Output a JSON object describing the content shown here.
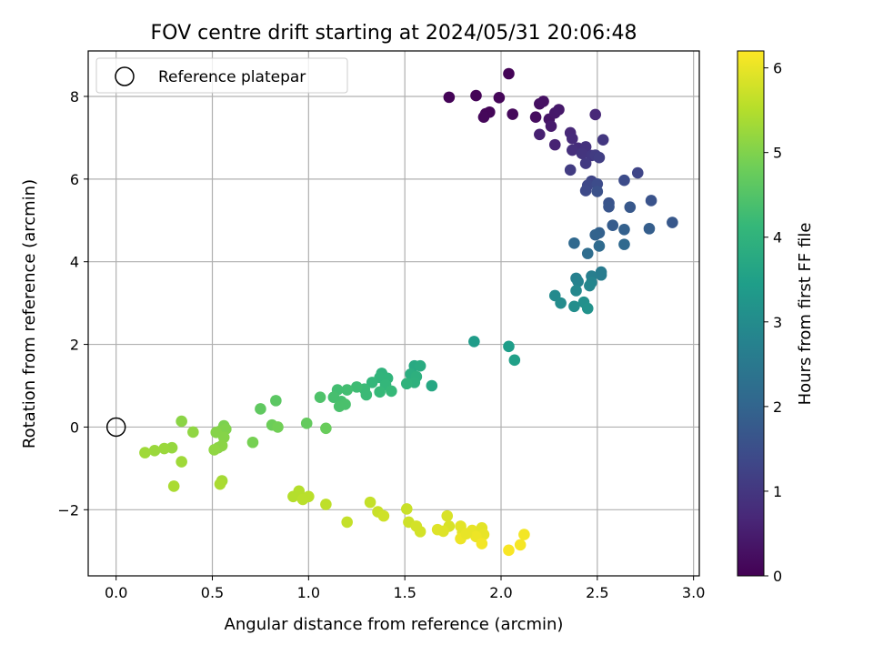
{
  "chart_data": {
    "type": "scatter",
    "title": "FOV centre drift starting at 2024/05/31 20:06:48",
    "xlabel": "Angular distance from reference (arcmin)",
    "ylabel": "Rotation from reference (arcmin)",
    "xlim": [
      -0.145,
      3.03
    ],
    "ylim": [
      -3.6,
      9.1
    ],
    "xticks": [
      0.0,
      0.5,
      1.0,
      1.5,
      2.0,
      2.5,
      3.0
    ],
    "xtick_labels": [
      "0.0",
      "0.5",
      "1.0",
      "1.5",
      "2.0",
      "2.5",
      "3.0"
    ],
    "yticks": [
      -2,
      0,
      2,
      4,
      6,
      8
    ],
    "ytick_labels": [
      "−2",
      "0",
      "2",
      "4",
      "6",
      "8"
    ],
    "grid": true,
    "legend": {
      "position": "top-left",
      "entries": [
        {
          "label": "Reference platepar",
          "marker": "open-circle"
        }
      ]
    },
    "reference_point": {
      "x": 0.0,
      "y": 0.0
    },
    "colorbar": {
      "label": "Hours from first FF file",
      "colormap": "viridis",
      "range": [
        0,
        6.2
      ],
      "ticks": [
        0,
        1,
        2,
        3,
        4,
        5,
        6
      ],
      "tick_labels": [
        "0",
        "1",
        "2",
        "3",
        "4",
        "5",
        "6"
      ]
    },
    "colormap_stops": [
      "#440154",
      "#482878",
      "#3e4989",
      "#31688e",
      "#26828e",
      "#1f9e89",
      "#35b779",
      "#6ece58",
      "#b5de2b",
      "#fde725"
    ],
    "series": [
      {
        "values": [
          [
            1.73,
            7.98,
            0.05
          ],
          [
            1.87,
            8.02,
            0.06
          ],
          [
            2.04,
            8.55,
            0.05
          ],
          [
            1.94,
            7.62,
            0.08
          ],
          [
            1.92,
            7.58,
            0.1
          ],
          [
            1.91,
            7.5,
            0.12
          ],
          [
            1.99,
            7.97,
            0.1
          ],
          [
            2.06,
            7.57,
            0.14
          ],
          [
            2.18,
            7.5,
            0.2
          ],
          [
            2.2,
            7.82,
            0.25
          ],
          [
            2.22,
            7.88,
            0.28
          ],
          [
            2.25,
            7.45,
            0.35
          ],
          [
            2.28,
            7.6,
            0.4
          ],
          [
            2.3,
            7.68,
            0.42
          ],
          [
            2.26,
            7.28,
            0.45
          ],
          [
            2.2,
            7.08,
            0.55
          ],
          [
            2.28,
            6.83,
            0.6
          ],
          [
            2.36,
            7.12,
            0.7
          ],
          [
            2.37,
            6.98,
            0.75
          ],
          [
            2.4,
            6.75,
            0.8
          ],
          [
            2.37,
            6.7,
            0.85
          ],
          [
            2.44,
            6.78,
            0.9
          ],
          [
            2.49,
            7.56,
            0.7
          ],
          [
            2.42,
            6.62,
            0.95
          ],
          [
            2.47,
            6.57,
            1.0
          ],
          [
            2.44,
            6.38,
            1.05
          ],
          [
            2.36,
            6.22,
            1.1
          ],
          [
            2.53,
            6.95,
            1.0
          ],
          [
            2.49,
            6.58,
            1.1
          ],
          [
            2.51,
            6.52,
            1.15
          ],
          [
            2.47,
            5.95,
            1.3
          ],
          [
            2.45,
            5.85,
            1.35
          ],
          [
            2.44,
            5.72,
            1.4
          ],
          [
            2.5,
            5.88,
            1.45
          ],
          [
            2.71,
            6.15,
            1.3
          ],
          [
            2.64,
            5.97,
            1.45
          ],
          [
            2.5,
            5.7,
            1.55
          ],
          [
            2.56,
            5.42,
            1.6
          ],
          [
            2.56,
            5.33,
            1.65
          ],
          [
            2.67,
            5.32,
            1.7
          ],
          [
            2.78,
            5.48,
            1.6
          ],
          [
            2.89,
            4.95,
            1.7
          ],
          [
            2.58,
            4.88,
            1.8
          ],
          [
            2.51,
            4.7,
            1.9
          ],
          [
            2.49,
            4.65,
            1.95
          ],
          [
            2.64,
            4.78,
            1.9
          ],
          [
            2.77,
            4.8,
            1.85
          ],
          [
            2.38,
            4.45,
            2.1
          ],
          [
            2.51,
            4.38,
            2.15
          ],
          [
            2.64,
            4.42,
            2.1
          ],
          [
            2.45,
            4.2,
            2.2
          ],
          [
            2.52,
            3.75,
            2.55
          ],
          [
            2.52,
            3.68,
            2.6
          ],
          [
            2.47,
            3.65,
            2.65
          ],
          [
            2.39,
            3.6,
            2.7
          ],
          [
            2.4,
            3.52,
            2.75
          ],
          [
            2.47,
            3.5,
            2.8
          ],
          [
            2.46,
            3.42,
            2.85
          ],
          [
            2.39,
            3.3,
            2.9
          ],
          [
            2.28,
            3.18,
            2.95
          ],
          [
            2.31,
            3.0,
            3.0
          ],
          [
            2.38,
            2.92,
            3.05
          ],
          [
            2.43,
            3.02,
            3.1
          ],
          [
            2.45,
            2.87,
            3.15
          ],
          [
            1.86,
            2.07,
            3.4
          ],
          [
            2.04,
            1.95,
            3.45
          ],
          [
            2.07,
            1.62,
            3.5
          ],
          [
            1.64,
            1.0,
            3.7
          ],
          [
            1.55,
            1.48,
            3.75
          ],
          [
            1.58,
            1.48,
            3.8
          ],
          [
            1.53,
            1.28,
            3.85
          ],
          [
            1.56,
            1.22,
            3.9
          ],
          [
            1.55,
            1.08,
            3.95
          ],
          [
            1.51,
            1.05,
            4.0
          ],
          [
            1.38,
            1.3,
            4.0
          ],
          [
            1.37,
            1.2,
            4.05
          ],
          [
            1.41,
            1.18,
            4.05
          ],
          [
            1.33,
            1.08,
            4.1
          ],
          [
            1.4,
            1.02,
            4.1
          ],
          [
            1.43,
            0.87,
            4.15
          ],
          [
            1.37,
            0.85,
            4.15
          ],
          [
            1.29,
            0.92,
            4.2
          ],
          [
            1.3,
            0.78,
            4.2
          ],
          [
            1.25,
            0.97,
            4.25
          ],
          [
            1.2,
            0.9,
            4.3
          ],
          [
            1.15,
            0.9,
            4.3
          ],
          [
            1.13,
            0.72,
            4.35
          ],
          [
            1.17,
            0.62,
            4.35
          ],
          [
            1.19,
            0.55,
            4.4
          ],
          [
            1.16,
            0.5,
            4.4
          ],
          [
            1.06,
            0.72,
            4.45
          ],
          [
            0.83,
            0.64,
            4.6
          ],
          [
            0.75,
            0.44,
            4.65
          ],
          [
            0.99,
            0.09,
            4.7
          ],
          [
            1.09,
            -0.03,
            4.75
          ],
          [
            0.81,
            0.05,
            4.8
          ],
          [
            0.84,
            0.0,
            4.85
          ],
          [
            0.71,
            -0.37,
            4.9
          ],
          [
            0.56,
            0.03,
            4.95
          ],
          [
            0.57,
            -0.05,
            5.0
          ],
          [
            0.54,
            -0.1,
            5.0
          ],
          [
            0.52,
            -0.13,
            5.05
          ],
          [
            0.56,
            -0.25,
            5.05
          ],
          [
            0.55,
            -0.45,
            5.1
          ],
          [
            0.53,
            -0.5,
            5.1
          ],
          [
            0.51,
            -0.55,
            5.15
          ],
          [
            0.34,
            0.14,
            5.1
          ],
          [
            0.4,
            -0.12,
            5.15
          ],
          [
            0.29,
            -0.5,
            5.2
          ],
          [
            0.25,
            -0.52,
            5.25
          ],
          [
            0.2,
            -0.57,
            5.25
          ],
          [
            0.15,
            -0.62,
            5.3
          ],
          [
            0.34,
            -0.84,
            5.3
          ],
          [
            0.55,
            -1.3,
            5.35
          ],
          [
            0.54,
            -1.38,
            5.4
          ],
          [
            0.3,
            -1.43,
            5.4
          ],
          [
            0.95,
            -1.55,
            5.5
          ],
          [
            0.92,
            -1.68,
            5.5
          ],
          [
            1.0,
            -1.68,
            5.55
          ],
          [
            0.97,
            -1.75,
            5.55
          ],
          [
            1.09,
            -1.87,
            5.6
          ],
          [
            1.2,
            -2.3,
            5.65
          ],
          [
            1.32,
            -1.82,
            5.65
          ],
          [
            1.36,
            -2.05,
            5.7
          ],
          [
            1.39,
            -2.15,
            5.75
          ],
          [
            1.51,
            -1.98,
            5.7
          ],
          [
            1.52,
            -2.3,
            5.75
          ],
          [
            1.56,
            -2.4,
            5.8
          ],
          [
            1.58,
            -2.53,
            5.8
          ],
          [
            1.72,
            -2.15,
            5.85
          ],
          [
            1.73,
            -2.4,
            5.85
          ],
          [
            1.67,
            -2.48,
            5.9
          ],
          [
            1.7,
            -2.52,
            5.9
          ],
          [
            1.79,
            -2.4,
            5.95
          ],
          [
            1.8,
            -2.55,
            5.95
          ],
          [
            1.85,
            -2.5,
            6.0
          ],
          [
            1.9,
            -2.44,
            5.95
          ],
          [
            1.91,
            -2.6,
            6.0
          ],
          [
            1.79,
            -2.7,
            6.05
          ],
          [
            1.87,
            -2.65,
            6.05
          ],
          [
            1.9,
            -2.82,
            6.1
          ],
          [
            2.04,
            -2.98,
            6.15
          ],
          [
            2.1,
            -2.85,
            6.12
          ],
          [
            2.12,
            -2.6,
            6.1
          ],
          [
            1.82,
            -2.58,
            6.0
          ]
        ]
      }
    ]
  }
}
